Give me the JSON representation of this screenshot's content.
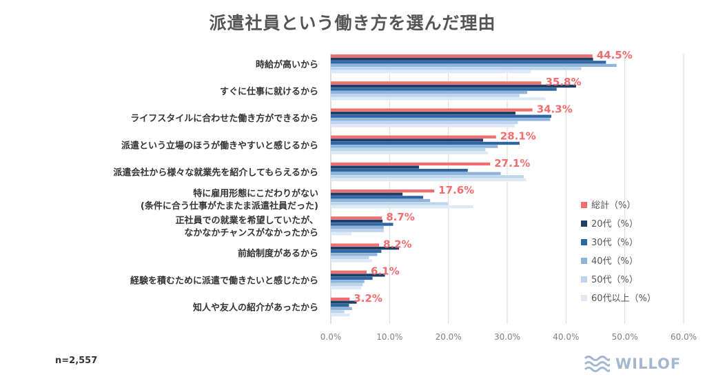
{
  "chart_data": {
    "type": "bar",
    "orientation": "horizontal",
    "title": "派遣社員という働き方を選んだ理由",
    "categories": [
      [
        "時給が高いから"
      ],
      [
        "すぐに仕事に就けるから"
      ],
      [
        "ライフスタイルに合わせた働き方ができるから"
      ],
      [
        "派遣という立場のほうが働きやすいと感じるから"
      ],
      [
        "派遣会社から様々な就業先を紹介してもらえるから"
      ],
      [
        "特に雇用形態にこだわりがない",
        "(条件に合う仕事がたまたま派遣社員だった)"
      ],
      [
        "正社員での就業を希望していたが、",
        "なかなかチャンスがなかったから"
      ],
      [
        "前給制度があるから"
      ],
      [
        "経験を積むために派遣で働きたいと感じたから"
      ],
      [
        "知人や友人の紹介があったから"
      ]
    ],
    "series": [
      {
        "name": "総計（%）",
        "color": "#f26d6d",
        "values": [
          44.5,
          35.8,
          34.3,
          28.1,
          27.1,
          17.6,
          8.7,
          8.2,
          6.1,
          3.2
        ]
      },
      {
        "name": "20代（%）",
        "color": "#1f3f66",
        "values": [
          44.6,
          41.7,
          31.4,
          25.9,
          15.0,
          12.2,
          8.8,
          11.6,
          9.2,
          4.4
        ]
      },
      {
        "name": "30代（%）",
        "color": "#2e65a3",
        "values": [
          46.8,
          38.4,
          37.5,
          32.1,
          23.3,
          15.7,
          10.6,
          8.6,
          7.1,
          3.1
        ]
      },
      {
        "name": "40代（%）",
        "color": "#8fb3d9",
        "values": [
          48.6,
          33.4,
          37.3,
          28.4,
          28.9,
          16.9,
          9.0,
          7.9,
          5.7,
          3.6
        ]
      },
      {
        "name": "50代（%）",
        "color": "#bdd5ec",
        "values": [
          42.6,
          32.1,
          31.8,
          26.3,
          32.8,
          19.9,
          9.0,
          6.5,
          5.4,
          2.3
        ]
      },
      {
        "name": "60代以上（%）",
        "color": "#dde9f6",
        "values": [
          34.0,
          36.5,
          31.3,
          26.7,
          33.2,
          24.2,
          3.5,
          7.0,
          5.2,
          3.2
        ]
      }
    ],
    "data_labels": [
      "44.5%",
      "35.8%",
      "34.3%",
      "28.1%",
      "27.1%",
      "17.6%",
      "8.7%",
      "8.2%",
      "6.1%",
      "3.2%"
    ],
    "x_ticks": [
      "0.0%",
      "10.0%",
      "20.0%",
      "30.0%",
      "40.0%",
      "50.0%",
      "60.0%"
    ],
    "xlim": [
      0,
      60
    ],
    "grid": true,
    "legend_position": "right"
  },
  "sample_note": "n=2,557",
  "brand": "WILLOF"
}
